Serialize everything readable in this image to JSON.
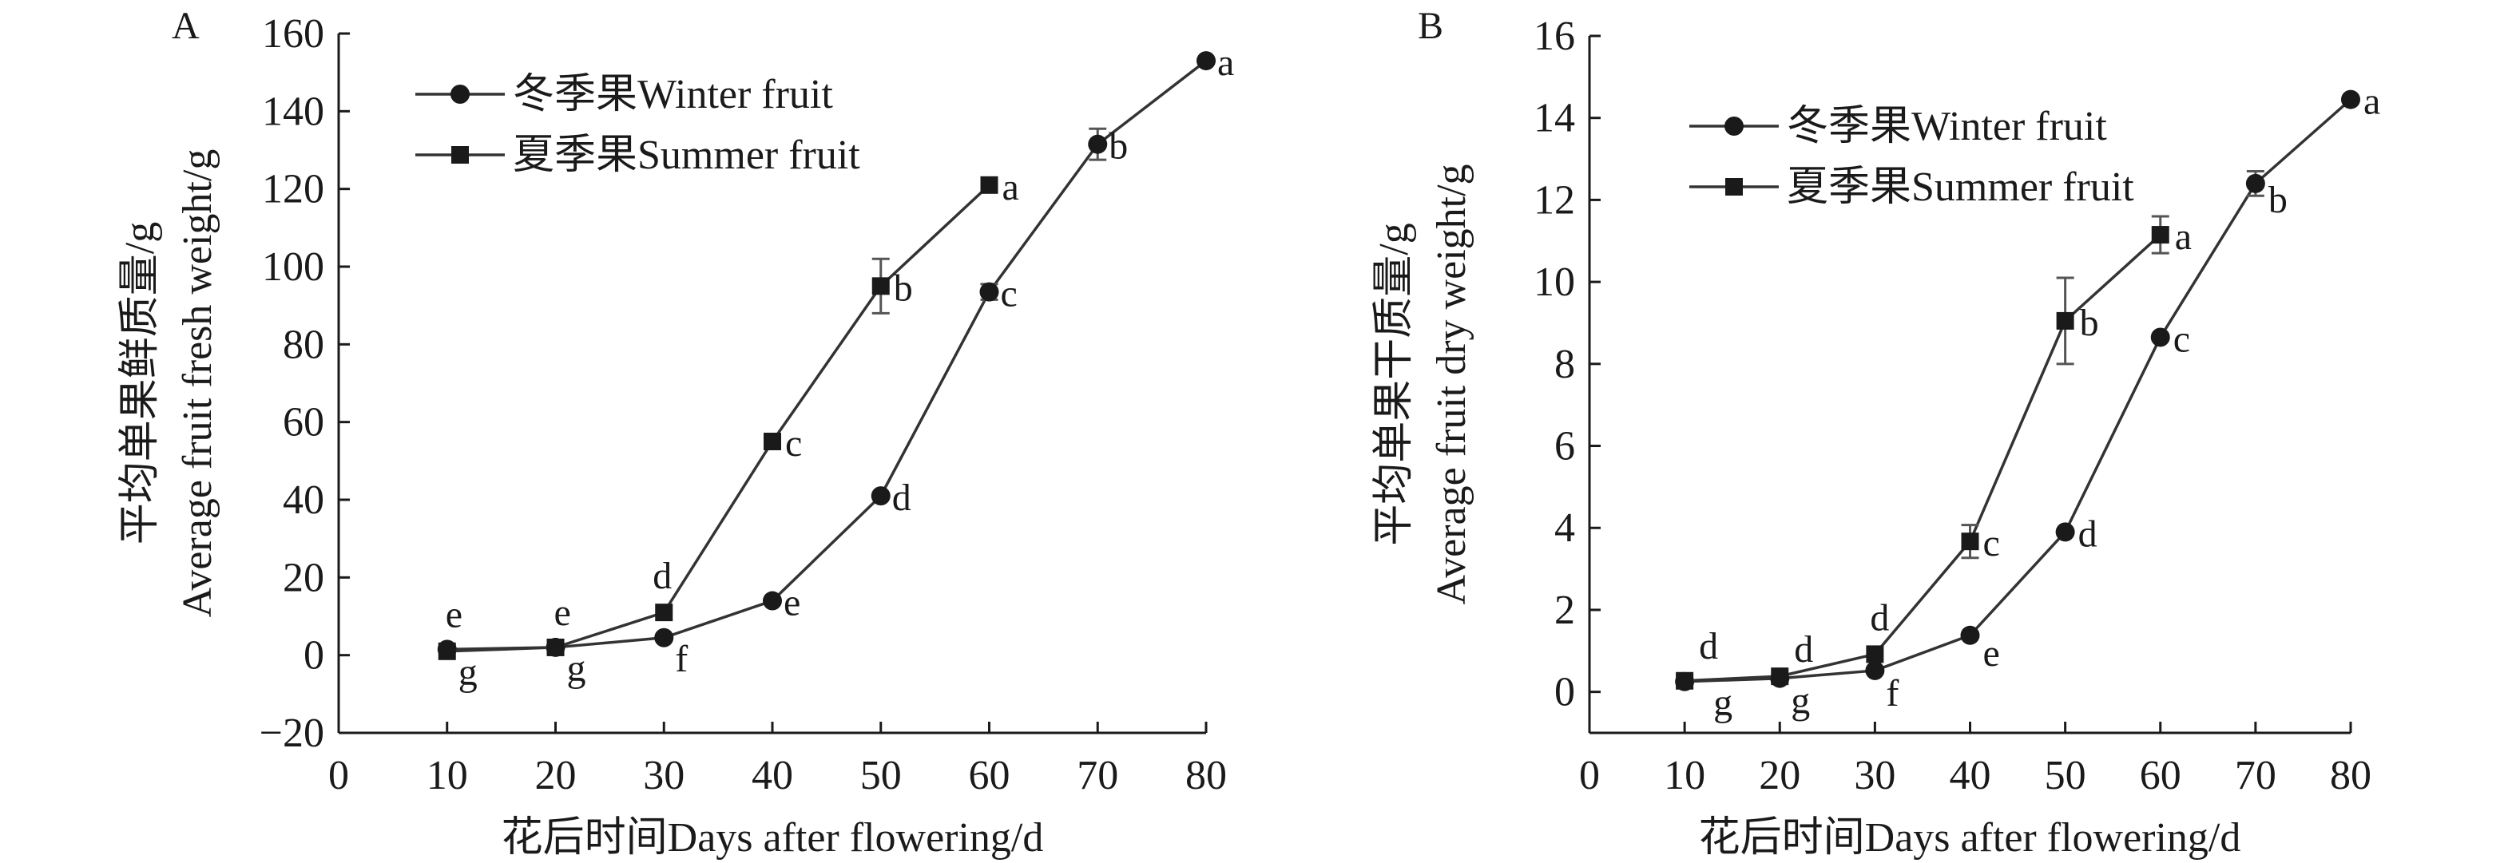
{
  "chart_data": [
    {
      "panel_label": "A",
      "type": "line",
      "ylabel_line1": "平均单果鲜质量/g",
      "ylabel_line2": "Average fruit fresh weight/g",
      "xlabel": "花后时间Days after flowering/d",
      "xlim": [
        0,
        80
      ],
      "ylim": [
        -20,
        160
      ],
      "xticks": [
        0,
        10,
        20,
        30,
        40,
        50,
        60,
        70,
        80
      ],
      "yticks": [
        -20,
        0,
        20,
        40,
        60,
        80,
        100,
        120,
        140,
        160
      ],
      "ytick_labels": [
        "−20",
        "0",
        "20",
        "40",
        "60",
        "80",
        "100",
        "120",
        "140",
        "160"
      ],
      "legend_position": "top-left",
      "series": [
        {
          "name": "冬季果Winter fruit",
          "marker": "circle",
          "x": [
            10,
            20,
            30,
            40,
            50,
            60,
            70,
            80
          ],
          "y": [
            1.5,
            2,
            4.5,
            14,
            41,
            93.5,
            131.5,
            153
          ],
          "error": [
            0,
            0,
            0,
            0,
            0,
            2,
            4,
            0
          ],
          "letters": [
            "e",
            "e",
            "f",
            "e",
            "d",
            "c",
            "b",
            "a"
          ]
        },
        {
          "name": "夏季果Summer fruit",
          "marker": "square",
          "x": [
            10,
            20,
            30,
            40,
            50,
            60
          ],
          "y": [
            1,
            2,
            11,
            55,
            95,
            121
          ],
          "error": [
            0,
            0,
            0,
            0,
            7,
            0
          ],
          "letters": [
            "g",
            "g",
            "d",
            "c",
            "b",
            "a"
          ]
        }
      ]
    },
    {
      "panel_label": "B",
      "type": "line",
      "ylabel_line1": "平均单果干质量/g",
      "ylabel_line2": "Average fruit dry weight/g",
      "xlabel": "花后时间Days after flowering/d",
      "xlim": [
        0,
        80
      ],
      "ylim": [
        -1,
        16
      ],
      "xticks": [
        0,
        10,
        20,
        30,
        40,
        50,
        60,
        70,
        80
      ],
      "yticks": [
        0,
        2,
        4,
        6,
        8,
        10,
        12,
        14,
        16
      ],
      "ytick_labels": [
        "0",
        "2",
        "4",
        "6",
        "8",
        "10",
        "12",
        "14",
        "16"
      ],
      "legend_position": "top-left",
      "series": [
        {
          "name": "冬季果Winter fruit",
          "marker": "circle",
          "x": [
            10,
            20,
            30,
            40,
            50,
            60,
            70,
            80
          ],
          "y": [
            0.25,
            0.33,
            0.52,
            1.38,
            3.9,
            8.65,
            12.4,
            14.45
          ],
          "error": [
            0,
            0,
            0,
            0,
            0,
            0,
            0.3,
            0
          ],
          "letters": [
            "g",
            "g",
            "f",
            "e",
            "d",
            "c",
            "b",
            "a"
          ]
        },
        {
          "name": "夏季果Summer fruit",
          "marker": "square",
          "x": [
            10,
            20,
            30,
            40,
            50,
            60
          ],
          "y": [
            0.27,
            0.38,
            0.92,
            3.67,
            9.05,
            11.15
          ],
          "error": [
            0,
            0,
            0,
            0.4,
            1.05,
            0.45
          ],
          "letters": [
            "d",
            "d",
            "d",
            "c",
            "b",
            "a"
          ]
        }
      ]
    }
  ]
}
